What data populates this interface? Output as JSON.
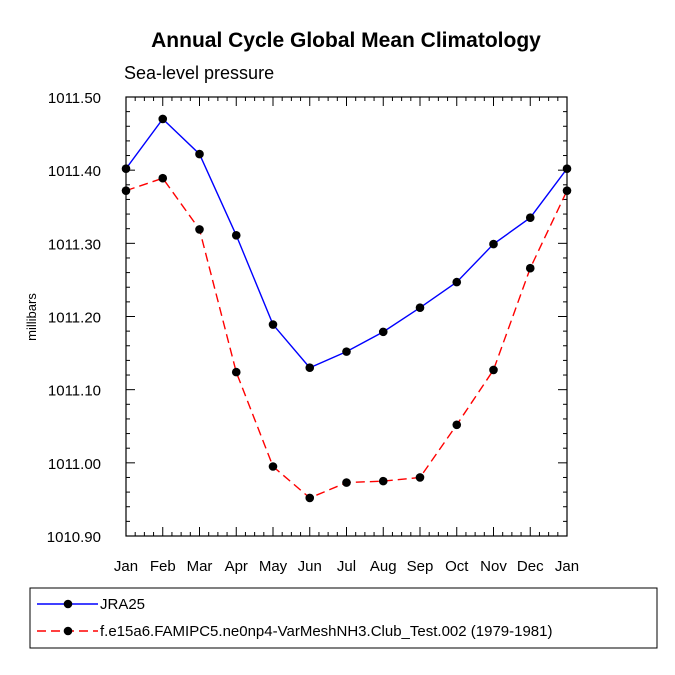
{
  "chart_data": {
    "type": "line",
    "title": "Annual Cycle Global Mean Climatology",
    "subtitle": "Sea-level pressure",
    "xlabel": "",
    "ylabel": "millibars",
    "categories": [
      "Jan",
      "Feb",
      "Mar",
      "Apr",
      "May",
      "Jun",
      "Jul",
      "Aug",
      "Sep",
      "Oct",
      "Nov",
      "Dec",
      "Jan"
    ],
    "ylim": [
      1010.9,
      1011.5
    ],
    "yticks": [
      "1010.90",
      "1011.00",
      "1011.10",
      "1011.20",
      "1011.30",
      "1011.40",
      "1011.50"
    ],
    "ytick_values": [
      1010.9,
      1011.0,
      1011.1,
      1011.2,
      1011.3,
      1011.4,
      1011.5
    ],
    "legend_position": "bottom",
    "series": [
      {
        "name": "JRA25",
        "color": "#0000ff",
        "dash": "solid",
        "values": [
          1011.402,
          1011.47,
          1011.422,
          1011.311,
          1011.189,
          1011.13,
          1011.152,
          1011.179,
          1011.212,
          1011.247,
          1011.299,
          1011.335,
          1011.402
        ]
      },
      {
        "name": "f.e15a6.FAMIPC5.ne0np4-VarMeshNH3.Club_Test.002 (1979-1981)",
        "color": "#ff0000",
        "dash": "dashed",
        "values": [
          1011.372,
          1011.389,
          1011.319,
          1011.124,
          1010.995,
          1010.952,
          1010.973,
          1010.975,
          1010.98,
          1011.052,
          1011.127,
          1011.266,
          1011.372
        ]
      }
    ]
  }
}
